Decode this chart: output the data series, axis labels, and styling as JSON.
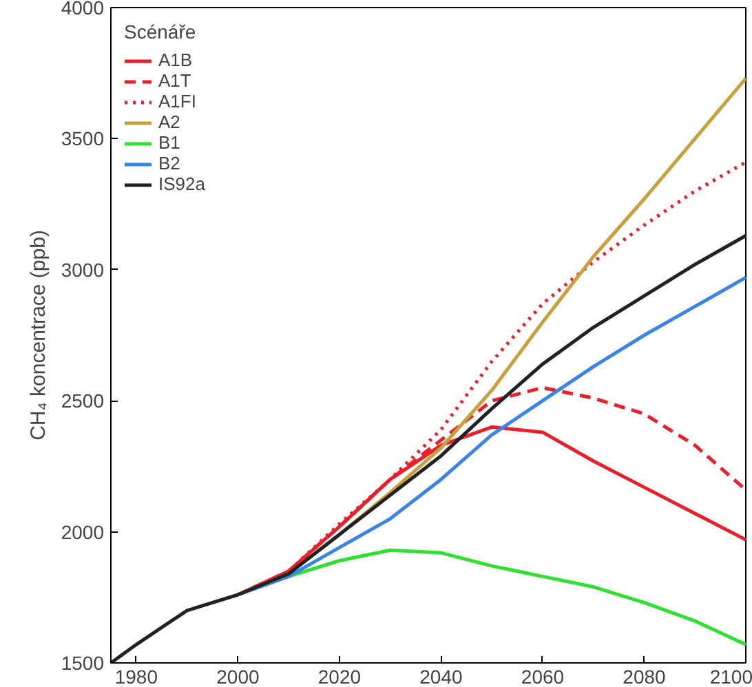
{
  "chart_data": {
    "type": "line",
    "ylabel": "CH₄ koncentrace (ppb)",
    "legend_title": "Scénáře",
    "legend": "top left",
    "grid": false,
    "x": [
      1975,
      1980,
      1990,
      2000,
      2010,
      2020,
      2030,
      2040,
      2050,
      2060,
      2070,
      2080,
      2090,
      2100
    ],
    "xlim": [
      1975,
      2100
    ],
    "ylim": [
      1500,
      4000
    ],
    "xticks": [
      1980,
      2000,
      2020,
      2040,
      2060,
      2080,
      2100
    ],
    "yticks": [
      1500,
      2000,
      2500,
      3000,
      3500,
      4000
    ],
    "series": [
      {
        "name": "A1B",
        "color": "#e8202a",
        "line_style": "solid",
        "values": [
          null,
          null,
          null,
          1760,
          1850,
          2020,
          2200,
          2330,
          2400,
          2380,
          2270,
          2170,
          2070,
          1970
        ]
      },
      {
        "name": "A1T",
        "color": "#e8202a",
        "line_style": "dashed",
        "values": [
          null,
          null,
          null,
          1760,
          1850,
          2020,
          2200,
          2350,
          2500,
          2550,
          2510,
          2450,
          2330,
          2160
        ]
      },
      {
        "name": "A1FI",
        "color": "#e8202a",
        "line_style": "dotted",
        "values": [
          null,
          null,
          null,
          1760,
          1850,
          2030,
          2200,
          2390,
          2650,
          2870,
          3030,
          3170,
          3300,
          3410
        ]
      },
      {
        "name": "A2",
        "color": "#c8a03c",
        "line_style": "solid",
        "values": [
          null,
          null,
          null,
          1760,
          1840,
          1990,
          2150,
          2320,
          2540,
          2800,
          3050,
          3270,
          3500,
          3730
        ]
      },
      {
        "name": "B1",
        "color": "#30e030",
        "line_style": "solid",
        "values": [
          null,
          null,
          null,
          1760,
          1830,
          1890,
          1930,
          1920,
          1870,
          1830,
          1790,
          1730,
          1660,
          1570
        ]
      },
      {
        "name": "B2",
        "color": "#3a84e8",
        "line_style": "solid",
        "values": [
          null,
          null,
          null,
          1760,
          1830,
          1940,
          2050,
          2200,
          2370,
          2500,
          2630,
          2750,
          2860,
          2970
        ]
      },
      {
        "name": "IS92a",
        "color": "#222222",
        "line_style": "solid",
        "values": [
          1500,
          1570,
          1700,
          1760,
          1840,
          1990,
          2140,
          2290,
          2470,
          2640,
          2780,
          2900,
          3020,
          3130
        ]
      }
    ]
  }
}
